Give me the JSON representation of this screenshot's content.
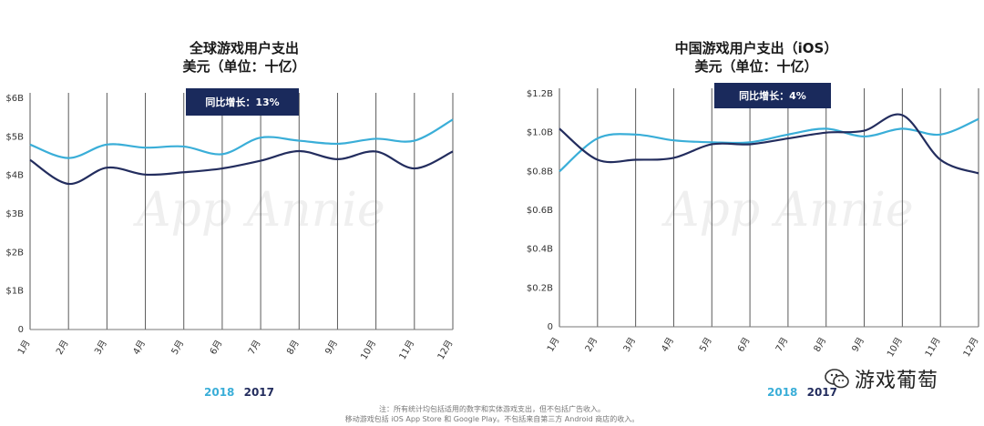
{
  "colors": {
    "series_2018": "#3aaed8",
    "series_2017": "#232d5e",
    "badge_bg": "#1a2a5c",
    "grid": "#5a5a5a"
  },
  "legend": {
    "label_2018": "2018",
    "label_2017": "2017"
  },
  "footnote": {
    "line1": "注：所有统计均包括适用的数字和实体游戏支出，但不包括广告收入。",
    "line2": "移动游戏包括 iOS App Store 和 Google Play。不包括来自第三方 Android 商店的收入。"
  },
  "watermark": {
    "icon": "wechat-icon",
    "text": "游戏葡萄"
  },
  "background_mark": "App Annie",
  "chart_data": [
    {
      "type": "line",
      "title": "全球游戏用户支出",
      "subtitle": "美元（单位：十亿）",
      "badge": "同比增长：13%",
      "categories": [
        "1月",
        "2月",
        "3月",
        "4月",
        "5月",
        "6月",
        "7月",
        "8月",
        "9月",
        "10月",
        "11月",
        "12月"
      ],
      "ylim": [
        0,
        6
      ],
      "yticks": [
        0,
        1,
        2,
        3,
        4,
        5,
        6
      ],
      "yticklabels": [
        "0",
        "$1B",
        "$2B",
        "$3B",
        "$4B",
        "$5B",
        "$6B"
      ],
      "grid": true,
      "series": [
        {
          "name": "2018",
          "values": [
            4.8,
            4.45,
            4.8,
            4.72,
            4.75,
            4.55,
            4.98,
            4.9,
            4.82,
            4.95,
            4.9,
            5.45
          ]
        },
        {
          "name": "2017",
          "values": [
            4.4,
            3.78,
            4.2,
            4.02,
            4.08,
            4.18,
            4.38,
            4.63,
            4.42,
            4.62,
            4.18,
            4.62
          ]
        }
      ]
    },
    {
      "type": "line",
      "title": "中国游戏用户支出（iOS）",
      "subtitle": "美元（单位：十亿）",
      "badge": "同比增长：4%",
      "categories": [
        "1月",
        "2月",
        "3月",
        "4月",
        "5月",
        "6月",
        "7月",
        "8月",
        "9月",
        "10月",
        "11月",
        "12月"
      ],
      "ylim": [
        0,
        1.2
      ],
      "yticks": [
        0,
        0.2,
        0.4,
        0.6,
        0.8,
        1.0,
        1.2
      ],
      "yticklabels": [
        "0",
        "$0.2B",
        "$0.4B",
        "$0.6B",
        "$0.8B",
        "$1.0B",
        "$1.2B"
      ],
      "grid": true,
      "series": [
        {
          "name": "2018",
          "values": [
            0.8,
            0.97,
            0.99,
            0.96,
            0.95,
            0.95,
            0.99,
            1.02,
            0.98,
            1.02,
            0.99,
            1.07
          ]
        },
        {
          "name": "2017",
          "values": [
            1.02,
            0.86,
            0.86,
            0.87,
            0.94,
            0.94,
            0.97,
            1.0,
            1.01,
            1.09,
            0.86,
            0.79
          ]
        }
      ]
    }
  ]
}
